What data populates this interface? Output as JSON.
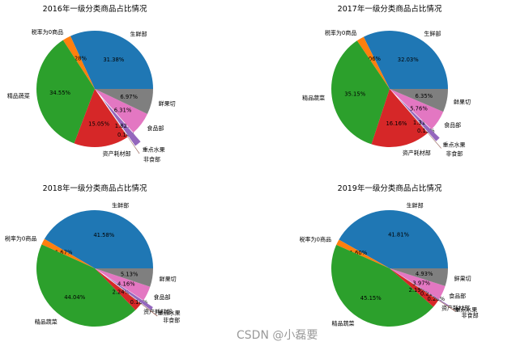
{
  "chart_data": [
    {
      "type": "pie",
      "title": "2016年一级分类商品占比情况",
      "categories": [
        "生鲜部",
        "税率为0商品",
        "精品蔬菜",
        "资产耗材部",
        "非食部",
        "重点水果",
        "食品部",
        "鲜果切"
      ],
      "values": [
        31.38,
        2.28,
        34.55,
        15.05,
        0.14,
        1.82,
        6.31,
        6.97
      ],
      "pct_labels": [
        "31.38%",
        "2.28%",
        "34.55%",
        "15.05%",
        "0.14%",
        "1.82%",
        "6.31%",
        "6.97%"
      ],
      "colors": [
        "#1f77b4",
        "#ff7f0e",
        "#2ca02c",
        "#d62728",
        "#8c564b",
        "#9467bd",
        "#e377c2",
        "#7f7f7f"
      ]
    },
    {
      "type": "pie",
      "title": "2017年一级分类商品占比情况",
      "categories": [
        "生鲜部",
        "税率为0商品",
        "精品蔬菜",
        "资产耗材部",
        "非食部",
        "重点水果",
        "食品部",
        "鲜果切"
      ],
      "values": [
        32.03,
        2.06,
        35.15,
        16.16,
        0.15,
        1.31,
        5.76,
        6.35
      ],
      "pct_labels": [
        "32.03%",
        "2.06%",
        "35.15%",
        "16.16%",
        "0.15%",
        "1.31%",
        "5.76%",
        "6.35%"
      ],
      "colors": [
        "#1f77b4",
        "#ff7f0e",
        "#2ca02c",
        "#d62728",
        "#8c564b",
        "#9467bd",
        "#e377c2",
        "#7f7f7f"
      ]
    },
    {
      "type": "pie",
      "title": "2018年一级分类商品占比情况",
      "categories": [
        "生鲜部",
        "税率为0商品",
        "精品蔬菜",
        "资产耗材部",
        "非食部",
        "重点水果",
        "食品部",
        "鲜果切"
      ],
      "values": [
        41.58,
        1.67,
        44.04,
        2.24,
        0.18,
        1.0,
        4.16,
        5.13
      ],
      "pct_labels": [
        "41.58%",
        "1.67%",
        "44.04%",
        "2.24%",
        "0.18%",
        "",
        "4.16%",
        "5.13%"
      ],
      "colors": [
        "#1f77b4",
        "#ff7f0e",
        "#2ca02c",
        "#d62728",
        "#8c564b",
        "#9467bd",
        "#e377c2",
        "#7f7f7f"
      ]
    },
    {
      "type": "pie",
      "title": "2019年一级分类商品占比情况",
      "categories": [
        "生鲜部",
        "税率为0商品",
        "精品蔬菜",
        "资产耗材部",
        "非食部",
        "重点水果",
        "食品部",
        "鲜果切"
      ],
      "values": [
        41.81,
        1.6,
        45.15,
        2.19,
        0.2,
        0.21,
        3.97,
        4.93
      ],
      "pct_labels": [
        "41.81%",
        "1.60%",
        "45.15%",
        "2.19%",
        "0.20%",
        "0.21%",
        "3.97%",
        "4.93%"
      ],
      "colors": [
        "#1f77b4",
        "#ff7f0e",
        "#2ca02c",
        "#d62728",
        "#8c564b",
        "#9467bd",
        "#e377c2",
        "#7f7f7f"
      ]
    }
  ],
  "watermark": "CSDN @小磊要"
}
